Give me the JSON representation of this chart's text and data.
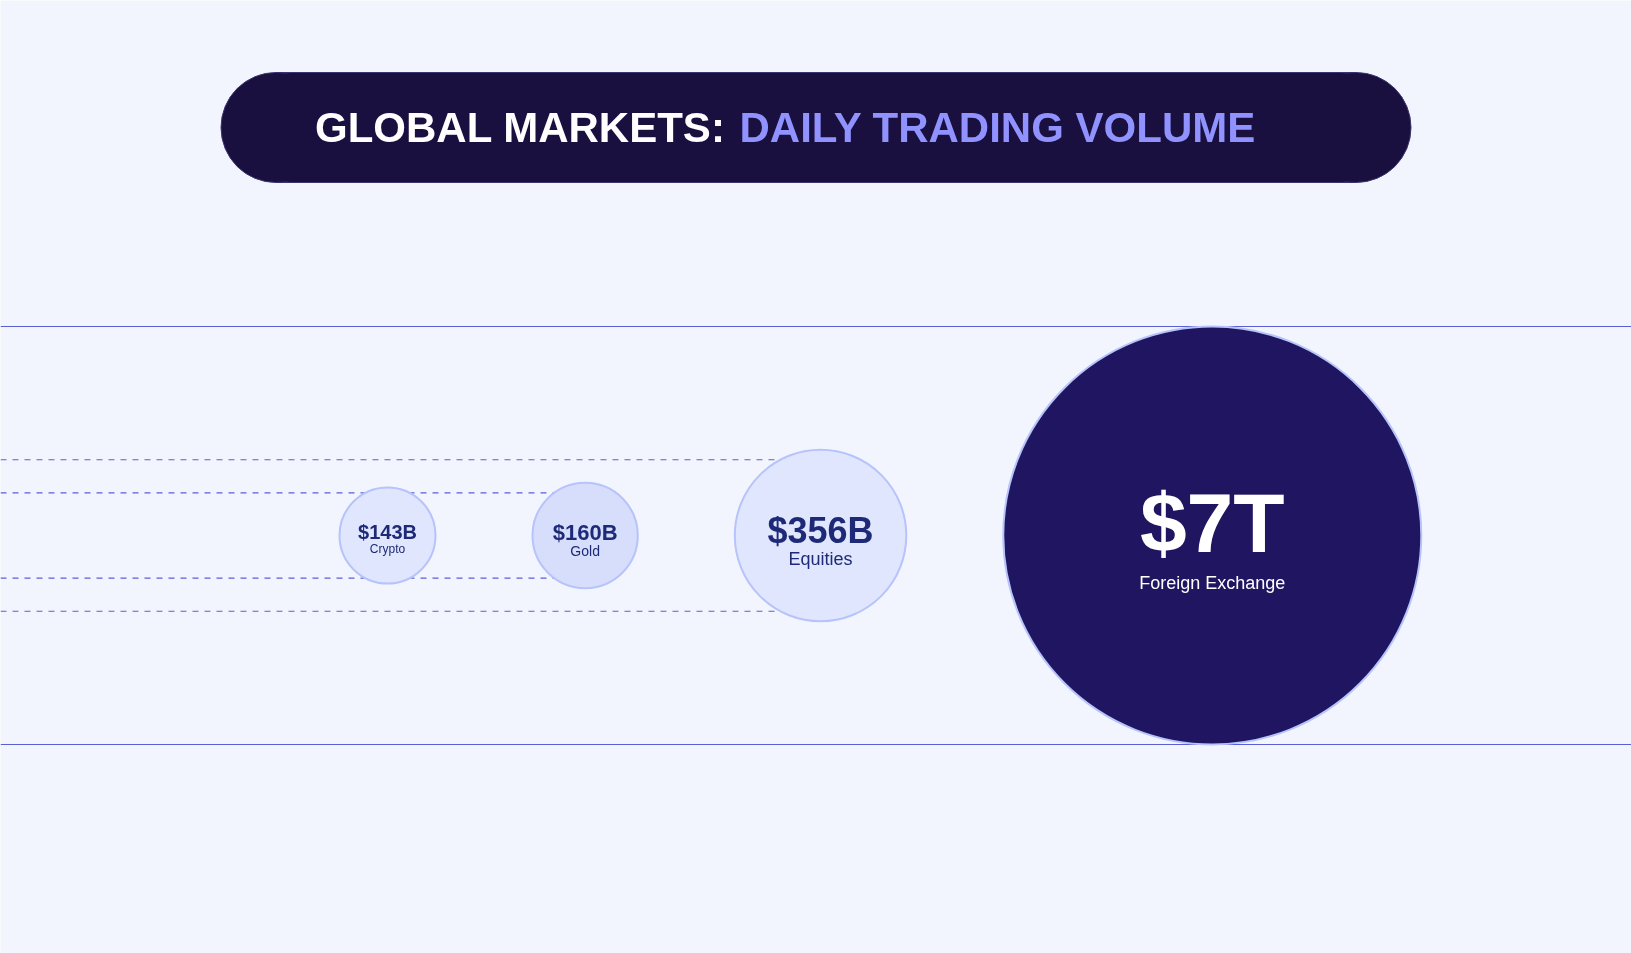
{
  "chart_data": {
    "type": "other",
    "title": "GLOBAL MARKETS: DAILY TRADING VOLUME",
    "categories": [
      "Crypto",
      "Gold",
      "Equities",
      "Foreign Exchange"
    ],
    "values": [
      143000000000,
      160000000000,
      356000000000,
      7000000000000
    ],
    "value_labels": [
      "$143B",
      "$160B",
      "$356B",
      "$7T"
    ],
    "colors": [
      "#dfe6fd",
      "#d6defc",
      "#dfe6fd",
      "#1f1560"
    ]
  }
}
